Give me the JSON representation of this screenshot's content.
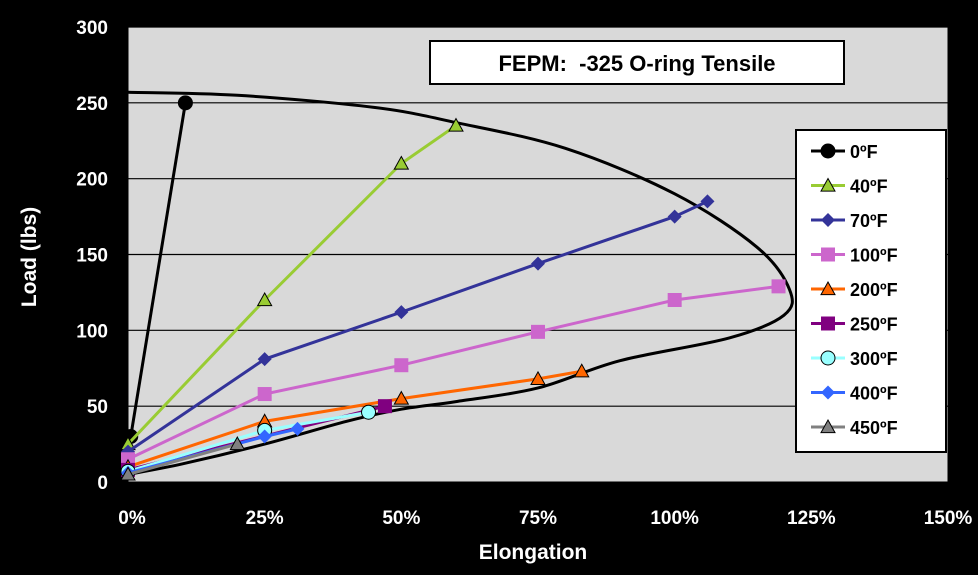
{
  "chart_data": {
    "type": "line",
    "title": "FEPM:  -325 O-ring Tensile",
    "xlabel": "Elongation",
    "ylabel": "Load (lbs)",
    "xlim": [
      0,
      150
    ],
    "ylim": [
      0,
      300
    ],
    "x_ticks": [
      0,
      25,
      50,
      75,
      100,
      125,
      150
    ],
    "x_tick_labels": [
      "0%",
      "25%",
      "50%",
      "75%",
      "100%",
      "125%",
      "150%"
    ],
    "y_ticks": [
      0,
      50,
      100,
      150,
      200,
      250,
      300
    ],
    "y_tick_labels": [
      "0",
      "50",
      "100",
      "150",
      "200",
      "250",
      "300"
    ],
    "grid": "horizontal",
    "legend_position": "right",
    "plot_background": "#d9d9d9",
    "series": [
      {
        "name": "0ºF",
        "color": "#000000",
        "marker": "circle",
        "x": [
          0.5,
          10.5
        ],
        "y": [
          30,
          250
        ]
      },
      {
        "name": "40ºF",
        "color": "#99cc33",
        "marker": "triangle",
        "x": [
          0,
          25,
          50,
          60
        ],
        "y": [
          25,
          120,
          210,
          235
        ]
      },
      {
        "name": "70ºF",
        "color": "#333399",
        "marker": "diamond",
        "x": [
          0,
          25,
          50,
          75,
          100,
          106
        ],
        "y": [
          20,
          81,
          112,
          144,
          175,
          185
        ]
      },
      {
        "name": "100ºF",
        "color": "#cc66cc",
        "marker": "square",
        "x": [
          0,
          25,
          50,
          75,
          100,
          119
        ],
        "y": [
          15,
          58,
          77,
          99,
          120,
          129
        ]
      },
      {
        "name": "200ºF",
        "color": "#ff6600",
        "marker": "triangle",
        "x": [
          0,
          25,
          50,
          75,
          83
        ],
        "y": [
          10,
          40,
          55,
          68,
          73
        ]
      },
      {
        "name": "250ºF",
        "color": "#800080",
        "marker": "square",
        "x": [
          0,
          47
        ],
        "y": [
          8,
          50
        ]
      },
      {
        "name": "300ºF",
        "color": "#99ffff",
        "marker": "circle",
        "x": [
          0,
          25,
          44
        ],
        "y": [
          7,
          34,
          46
        ]
      },
      {
        "name": "400ºF",
        "color": "#3366ff",
        "marker": "diamond",
        "x": [
          0,
          25,
          31
        ],
        "y": [
          6,
          30,
          35
        ]
      },
      {
        "name": "450ºF",
        "color": "#808080",
        "marker": "triangle",
        "x": [
          0,
          20
        ],
        "y": [
          5,
          25
        ]
      }
    ],
    "envelope": {
      "x": [
        0,
        20,
        45,
        60,
        80,
        100,
        115,
        121,
        120,
        110,
        90,
        75,
        60,
        50,
        40,
        25,
        10,
        0
      ],
      "y": [
        257,
        255,
        247,
        237,
        220,
        190,
        155,
        127,
        110,
        95,
        80,
        62,
        53,
        48,
        40,
        25,
        12,
        5
      ]
    }
  }
}
